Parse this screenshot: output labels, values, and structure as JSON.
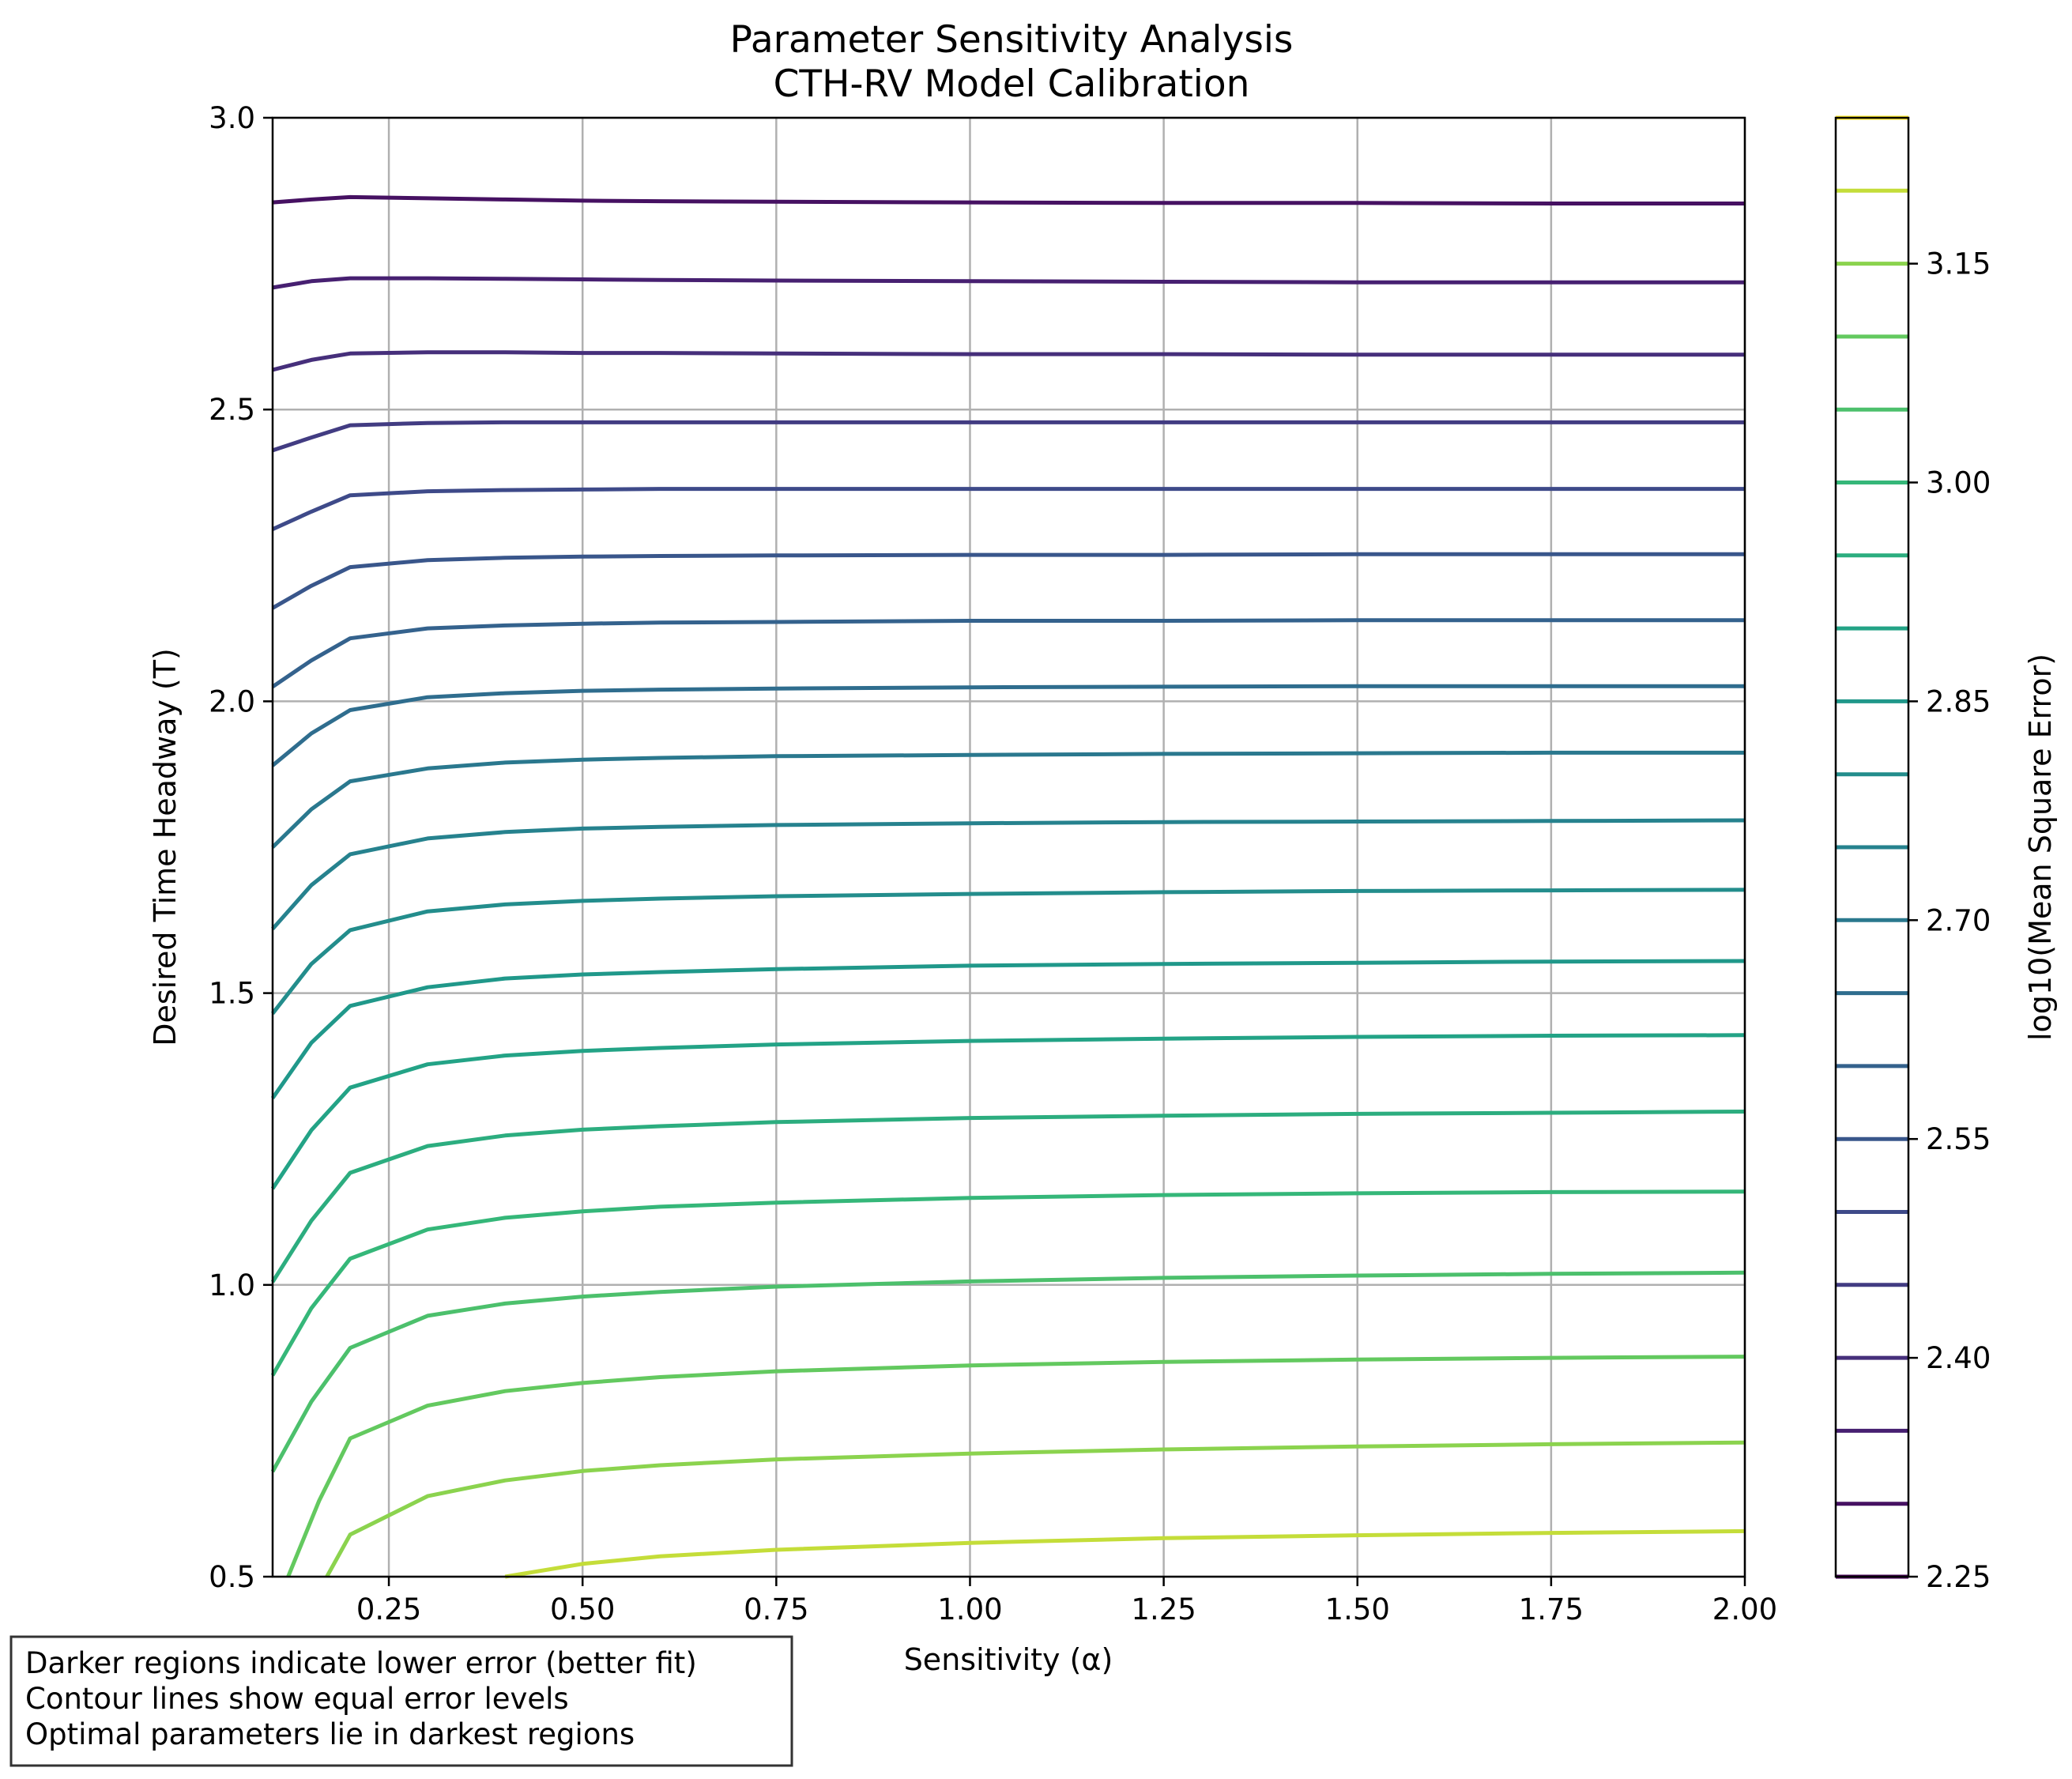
{
  "chart_data": {
    "type": "contour",
    "title": "Parameter Sensitivity Analysis",
    "subtitle": "CTH-RV Model Calibration",
    "xlabel": "Sensitivity (α)",
    "ylabel": "Desired Time Headway (T)",
    "xlim": [
      0.1,
      2.0
    ],
    "ylim": [
      0.5,
      3.0
    ],
    "xticks": [
      "0.25",
      "0.50",
      "0.75",
      "1.00",
      "1.25",
      "1.50",
      "1.75",
      "2.00"
    ],
    "yticks": [
      "0.5",
      "1.0",
      "1.5",
      "2.0",
      "2.5",
      "3.0"
    ],
    "grid": true,
    "colormap": "viridis",
    "colorbar": {
      "label": "log10(Mean Square Error)",
      "range": [
        2.25,
        3.25
      ],
      "ticks": [
        "2.25",
        "2.40",
        "2.55",
        "2.70",
        "2.85",
        "3.00",
        "3.15"
      ],
      "level_step": 0.05
    },
    "x": [
      0.1,
      0.15,
      0.2,
      0.3,
      0.4,
      0.5,
      0.6,
      0.75,
      1.0,
      1.25,
      1.5,
      1.75,
      2.0
    ],
    "contours": [
      {
        "level": 2.3,
        "y": [
          2.855,
          2.86,
          2.864,
          2.862,
          2.86,
          2.858,
          2.857,
          2.856,
          2.855,
          2.854,
          2.854,
          2.853,
          2.853
        ]
      },
      {
        "level": 2.35,
        "y": [
          2.709,
          2.72,
          2.725,
          2.725,
          2.724,
          2.723,
          2.722,
          2.721,
          2.72,
          2.719,
          2.718,
          2.718,
          2.718
        ]
      },
      {
        "level": 2.4,
        "y": [
          2.568,
          2.585,
          2.596,
          2.598,
          2.598,
          2.597,
          2.597,
          2.596,
          2.595,
          2.595,
          2.594,
          2.594,
          2.594
        ]
      },
      {
        "level": 2.45,
        "y": [
          2.43,
          2.452,
          2.473,
          2.477,
          2.478,
          2.478,
          2.478,
          2.478,
          2.478,
          2.478,
          2.478,
          2.478,
          2.478
        ]
      },
      {
        "level": 2.5,
        "y": [
          2.295,
          2.325,
          2.353,
          2.36,
          2.362,
          2.363,
          2.364,
          2.364,
          2.364,
          2.364,
          2.364,
          2.364,
          2.364
        ]
      },
      {
        "level": 2.55,
        "y": [
          2.16,
          2.198,
          2.23,
          2.242,
          2.246,
          2.248,
          2.249,
          2.25,
          2.251,
          2.251,
          2.252,
          2.252,
          2.252
        ]
      },
      {
        "level": 2.6,
        "y": [
          2.025,
          2.07,
          2.108,
          2.125,
          2.13,
          2.133,
          2.135,
          2.136,
          2.138,
          2.138,
          2.139,
          2.139,
          2.139
        ]
      },
      {
        "level": 2.65,
        "y": [
          1.89,
          1.945,
          1.985,
          2.007,
          2.014,
          2.018,
          2.02,
          2.022,
          2.024,
          2.025,
          2.026,
          2.026,
          2.026
        ]
      },
      {
        "level": 2.7,
        "y": [
          1.75,
          1.815,
          1.863,
          1.885,
          1.895,
          1.9,
          1.903,
          1.906,
          1.908,
          1.91,
          1.911,
          1.912,
          1.912
        ]
      },
      {
        "level": 2.75,
        "y": [
          1.61,
          1.685,
          1.738,
          1.765,
          1.776,
          1.782,
          1.785,
          1.788,
          1.791,
          1.793,
          1.794,
          1.795,
          1.796
        ]
      },
      {
        "level": 2.8,
        "y": [
          1.465,
          1.55,
          1.608,
          1.64,
          1.652,
          1.658,
          1.662,
          1.666,
          1.67,
          1.673,
          1.675,
          1.676,
          1.677
        ]
      },
      {
        "level": 2.85,
        "y": [
          1.32,
          1.415,
          1.478,
          1.51,
          1.525,
          1.532,
          1.536,
          1.541,
          1.547,
          1.55,
          1.552,
          1.554,
          1.555
        ]
      },
      {
        "level": 2.9,
        "y": [
          1.165,
          1.265,
          1.338,
          1.378,
          1.393,
          1.401,
          1.406,
          1.412,
          1.418,
          1.422,
          1.425,
          1.427,
          1.428
        ]
      },
      {
        "level": 2.95,
        "y": [
          1.005,
          1.11,
          1.192,
          1.238,
          1.256,
          1.266,
          1.272,
          1.279,
          1.286,
          1.29,
          1.293,
          1.295,
          1.297
        ]
      },
      {
        "level": 3.0,
        "y": [
          0.845,
          0.96,
          1.045,
          1.095,
          1.115,
          1.126,
          1.134,
          1.141,
          1.149,
          1.154,
          1.157,
          1.159,
          1.16
        ]
      },
      {
        "level": 3.05,
        "y": [
          0.68,
          0.8,
          0.892,
          0.947,
          0.968,
          0.98,
          0.988,
          0.997,
          1.006,
          1.012,
          1.016,
          1.019,
          1.021
        ]
      },
      {
        "level": 3.1,
        "x": [
          0.12,
          0.16,
          0.2,
          0.3,
          0.4,
          0.5,
          0.6,
          0.75,
          1.0,
          1.25,
          1.5,
          1.75,
          2.0
        ],
        "y": [
          0.5,
          0.63,
          0.737,
          0.793,
          0.818,
          0.832,
          0.842,
          0.852,
          0.862,
          0.868,
          0.872,
          0.875,
          0.877
        ]
      },
      {
        "level": 3.15,
        "x": [
          0.17,
          0.2,
          0.3,
          0.4,
          0.5,
          0.6,
          0.75,
          1.0,
          1.25,
          1.5,
          1.75,
          2.0
        ],
        "y": [
          0.5,
          0.572,
          0.638,
          0.665,
          0.681,
          0.691,
          0.701,
          0.711,
          0.718,
          0.723,
          0.727,
          0.73
        ]
      },
      {
        "level": 3.2,
        "x": [
          0.4,
          0.5,
          0.6,
          0.75,
          1.0,
          1.25,
          1.5,
          1.75,
          2.0
        ],
        "y": [
          0.5,
          0.522,
          0.535,
          0.546,
          0.558,
          0.566,
          0.571,
          0.575,
          0.578
        ]
      }
    ]
  },
  "note": {
    "lines": [
      "Darker regions indicate lower error (better fit)",
      "Contour lines show equal error levels",
      "Optimal parameters lie in darkest regions"
    ]
  }
}
